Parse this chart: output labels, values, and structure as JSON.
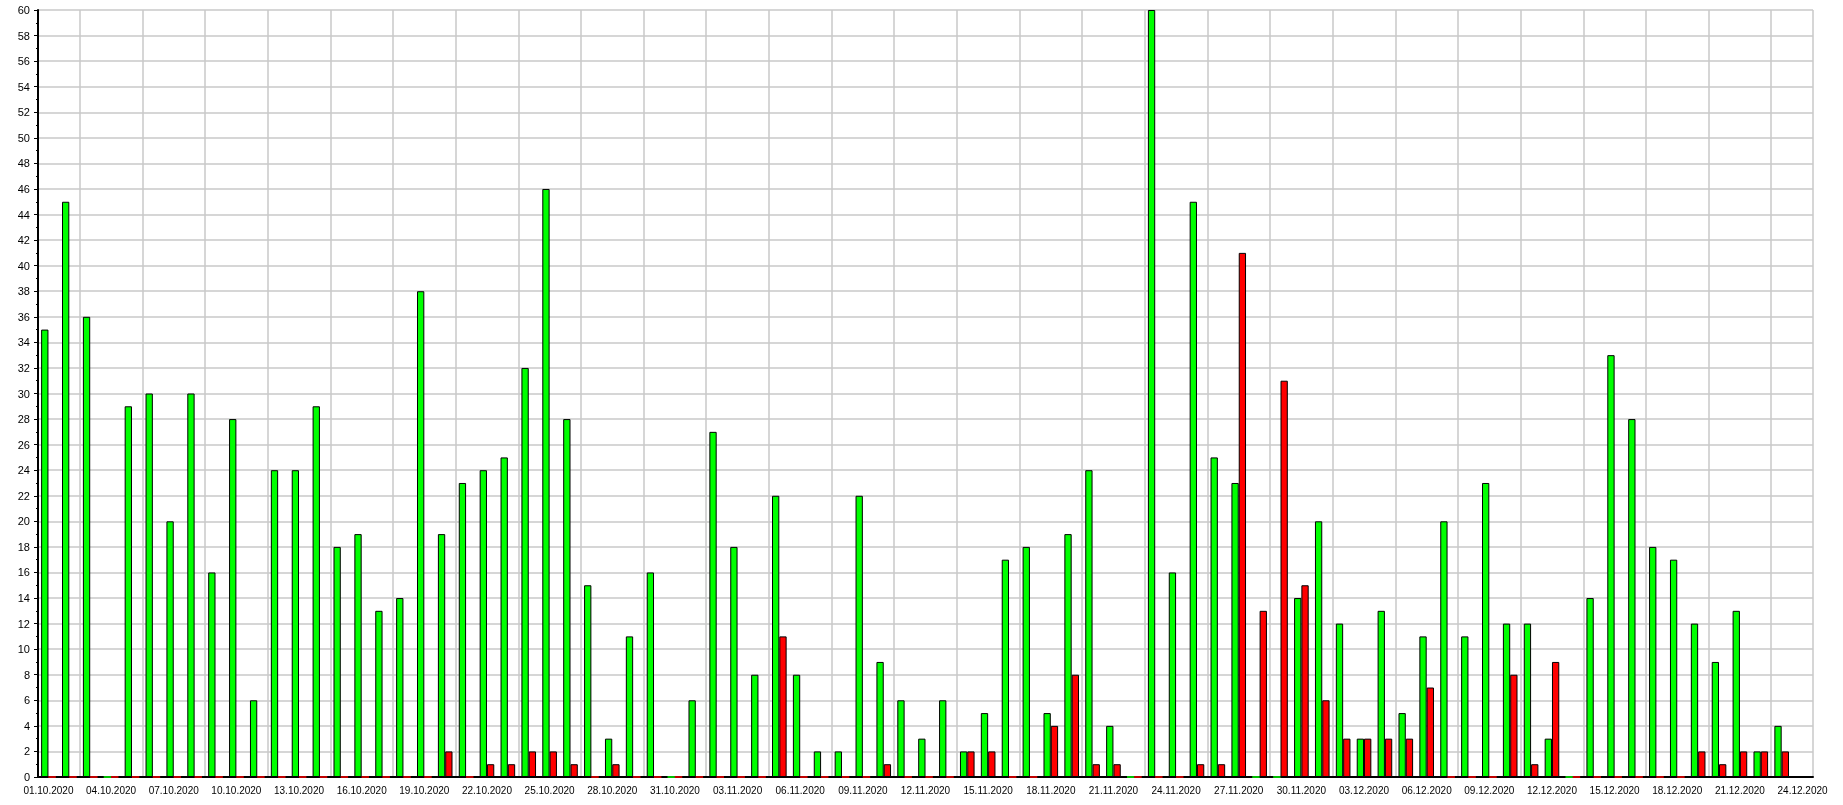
{
  "chart_data": {
    "type": "bar",
    "categories": [
      "01.10.2020",
      null,
      null,
      "04.10.2020",
      null,
      null,
      "07.10.2020",
      null,
      null,
      "10.10.2020",
      null,
      null,
      "13.10.2020",
      null,
      null,
      "16.10.2020",
      null,
      null,
      "19.10.2020",
      null,
      null,
      "22.10.2020",
      null,
      null,
      "25.10.2020",
      null,
      null,
      "28.10.2020",
      null,
      null,
      "31.10.2020",
      null,
      null,
      "03.11.2020",
      null,
      null,
      "06.11.2020",
      null,
      null,
      "09.11.2020",
      null,
      null,
      "12.11.2020",
      null,
      null,
      "15.11.2020",
      null,
      null,
      "18.11.2020",
      null,
      null,
      "21.11.2020",
      null,
      null,
      "24.11.2020",
      null,
      null,
      "27.11.2020",
      null,
      null,
      "30.11.2020",
      null,
      null,
      "03.12.2020",
      null,
      null,
      "06.12.2020",
      null,
      null,
      "09.12.2020",
      null,
      null,
      "12.12.2020",
      null,
      null,
      "15.12.2020",
      null,
      null,
      "18.12.2020",
      null,
      null,
      "21.12.2020",
      null,
      null,
      "24.12.2020"
    ],
    "series": [
      {
        "color": "#00ff00",
        "values": [
          35,
          45,
          36,
          0,
          29,
          30,
          20,
          30,
          16,
          28,
          6,
          24,
          24,
          29,
          18,
          19,
          13,
          14,
          38,
          19,
          23,
          24,
          25,
          32,
          46,
          28,
          15,
          3,
          11,
          16,
          0,
          6,
          27,
          18,
          8,
          22,
          8,
          2,
          2,
          22,
          9,
          6,
          3,
          6,
          2,
          5,
          17,
          18,
          5,
          19,
          24,
          4,
          0,
          60,
          16,
          45,
          25,
          23,
          0,
          0,
          14,
          20,
          12,
          3,
          13,
          5,
          11,
          20,
          11,
          23,
          12,
          12,
          3,
          0,
          14,
          33,
          28,
          18,
          17,
          12,
          9,
          13,
          2,
          4,
          null
        ]
      },
      {
        "color": "#ff0000",
        "values": [
          0,
          0,
          0,
          0,
          0,
          0,
          0,
          0,
          0,
          0,
          0,
          0,
          0,
          0,
          0,
          0,
          0,
          0,
          0,
          2,
          0,
          1,
          1,
          2,
          2,
          1,
          0,
          1,
          0,
          0,
          0,
          0,
          0,
          0,
          0,
          11,
          0,
          0,
          0,
          0,
          1,
          0,
          0,
          0,
          2,
          2,
          0,
          0,
          4,
          8,
          1,
          1,
          0,
          0,
          0,
          1,
          1,
          41,
          13,
          31,
          15,
          6,
          3,
          3,
          3,
          3,
          7,
          0,
          0,
          0,
          8,
          1,
          9,
          0,
          0,
          0,
          0,
          0,
          0,
          2,
          1,
          2,
          2,
          2,
          null
        ]
      }
    ],
    "ylim": [
      0,
      60
    ],
    "yticks": [
      0,
      2,
      4,
      6,
      8,
      10,
      12,
      14,
      16,
      18,
      20,
      22,
      24,
      26,
      28,
      30,
      32,
      34,
      36,
      38,
      40,
      42,
      44,
      46,
      48,
      50,
      52,
      54,
      56,
      58,
      60
    ],
    "grid": true
  }
}
